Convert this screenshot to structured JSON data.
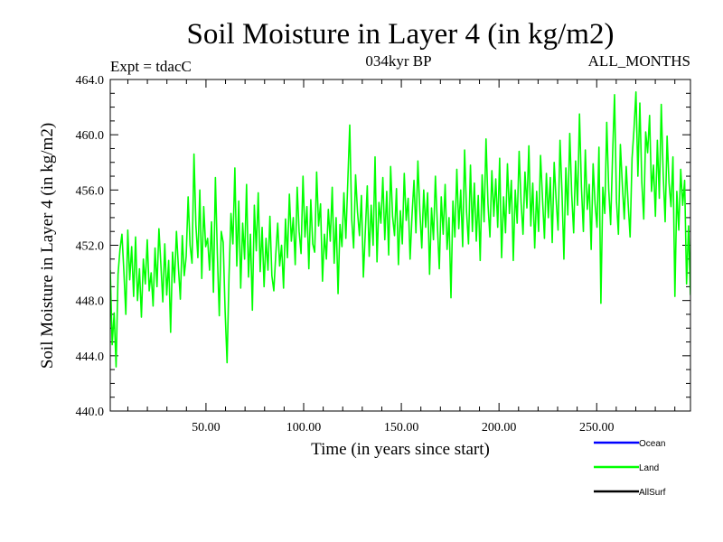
{
  "chart_data": {
    "type": "line",
    "title": "Soil Moisture in Layer 4 (in kg/m2)",
    "subtitle": "034kyr BP",
    "left_label": "Expt = tdacC",
    "right_label": "ALL_MONTHS",
    "xlabel": "Time (in years since start)",
    "ylabel": "Soil Moisture in Layer 4 (in kg/m2)",
    "xlim": [
      1,
      298
    ],
    "ylim": [
      440,
      464
    ],
    "x_ticks": [
      50,
      100,
      150,
      200,
      250
    ],
    "x_tick_labels": [
      "50.00",
      "100.00",
      "150.00",
      "200.00",
      "250.00"
    ],
    "y_ticks": [
      440,
      444,
      448,
      452,
      456,
      460,
      464
    ],
    "y_tick_labels": [
      "440.0",
      "444.0",
      "448.0",
      "452.0",
      "456.0",
      "460.0",
      "464.0"
    ],
    "legend": [
      {
        "name": "Ocean",
        "color": "#0000ff"
      },
      {
        "name": "Land",
        "color": "#00ff00"
      },
      {
        "name": "AllSurf",
        "color": "#000000"
      }
    ],
    "series": [
      {
        "name": "Land",
        "color": "#00ff00",
        "x_start": 1,
        "x_end": 298,
        "values": [
          450.2,
          444.8,
          447.1,
          443.2,
          449.9,
          451.7,
          452.8,
          450.1,
          447.0,
          453.1,
          449.5,
          451.9,
          448.3,
          452.6,
          448.0,
          450.3,
          446.8,
          451.0,
          449.2,
          452.4,
          448.7,
          450.0,
          447.6,
          451.8,
          449.0,
          453.2,
          450.6,
          447.9,
          452.1,
          448.4,
          450.9,
          445.7,
          451.5,
          449.3,
          453.0,
          450.4,
          448.1,
          452.7,
          449.8,
          451.2,
          455.5,
          452.0,
          450.7,
          458.6,
          453.4,
          451.1,
          456.0,
          449.6,
          454.8,
          451.9,
          452.5,
          450.2,
          453.7,
          448.6,
          456.9,
          451.4,
          446.9,
          453.0,
          452.2,
          447.2,
          443.5,
          449.8,
          454.3,
          452.1,
          457.6,
          450.5,
          455.2,
          448.9,
          453.6,
          451.0,
          456.4,
          449.7,
          452.8,
          447.3,
          454.9,
          451.6,
          455.8,
          450.1,
          453.3,
          449.0,
          452.5,
          450.2,
          454.1,
          449.8,
          448.7,
          451.3,
          453.6,
          450.5,
          452.0,
          448.9,
          453.9,
          451.1,
          455.7,
          452.3,
          454.0,
          450.6,
          456.2,
          453.0,
          451.4,
          457.0,
          452.6,
          454.8,
          450.3,
          455.3,
          452.1,
          451.5,
          457.3,
          453.4,
          455.0,
          449.4,
          452.8,
          451.0,
          454.6,
          452.3,
          456.2,
          450.7,
          454.0,
          448.5,
          453.5,
          451.9,
          455.8,
          452.5,
          456.6,
          460.7,
          453.9,
          451.8,
          457.1,
          454.4,
          452.7,
          455.6,
          449.7,
          453.0,
          456.3,
          451.2,
          454.9,
          452.0,
          458.4,
          450.8,
          455.1,
          453.6,
          456.9,
          452.4,
          455.9,
          451.3,
          457.7,
          454.1,
          452.7,
          456.1,
          450.6,
          454.5,
          452.1,
          457.2,
          453.8,
          455.4,
          451.0,
          454.2,
          456.7,
          452.9,
          458.1,
          454.5,
          451.8,
          456.0,
          453.3,
          455.8,
          449.9,
          454.7,
          452.4,
          457.0,
          453.5,
          450.3,
          455.5,
          452.8,
          456.4,
          451.7,
          454.0,
          448.2,
          455.2,
          452.6,
          457.5,
          453.2,
          456.0,
          451.9,
          458.9,
          454.4,
          452.1,
          457.8,
          453.0,
          456.5,
          452.3,
          455.6,
          450.9,
          457.1,
          453.7,
          459.7,
          455.0,
          452.6,
          457.4,
          454.1,
          456.8,
          453.3,
          458.3,
          451.1,
          455.5,
          452.9,
          457.9,
          454.3,
          456.7,
          450.9,
          456.0,
          453.6,
          458.8,
          455.1,
          452.8,
          457.3,
          454.7,
          459.2,
          453.4,
          456.5,
          451.8,
          455.9,
          453.0,
          458.5,
          455.4,
          452.5,
          457.2,
          454.0,
          456.9,
          452.2,
          458.0,
          455.3,
          453.1,
          459.6,
          455.9,
          451.0,
          457.6,
          454.2,
          460.1,
          455.7,
          452.9,
          458.1,
          454.9,
          461.5,
          456.2,
          453.0,
          458.9,
          454.6,
          456.4,
          451.7,
          457.9,
          455.0,
          453.3,
          459.1,
          447.8,
          456.2,
          454.3,
          460.9,
          456.1,
          453.5,
          458.5,
          462.9,
          455.2,
          452.8,
          459.3,
          456.4,
          453.9,
          457.7,
          455.0,
          452.6,
          458.3,
          460.4,
          463.1,
          457.0,
          462.3,
          456.6,
          453.9,
          460.2,
          458.7,
          461.4,
          455.9,
          457.8,
          454.1,
          459.6,
          455.4,
          462.2,
          457.1,
          453.7,
          459.9,
          456.5,
          454.8,
          458.4,
          448.3,
          455.9,
          453.1,
          457.5,
          454.9,
          456.7,
          449.2,
          453.4,
          448.4
        ]
      }
    ]
  }
}
